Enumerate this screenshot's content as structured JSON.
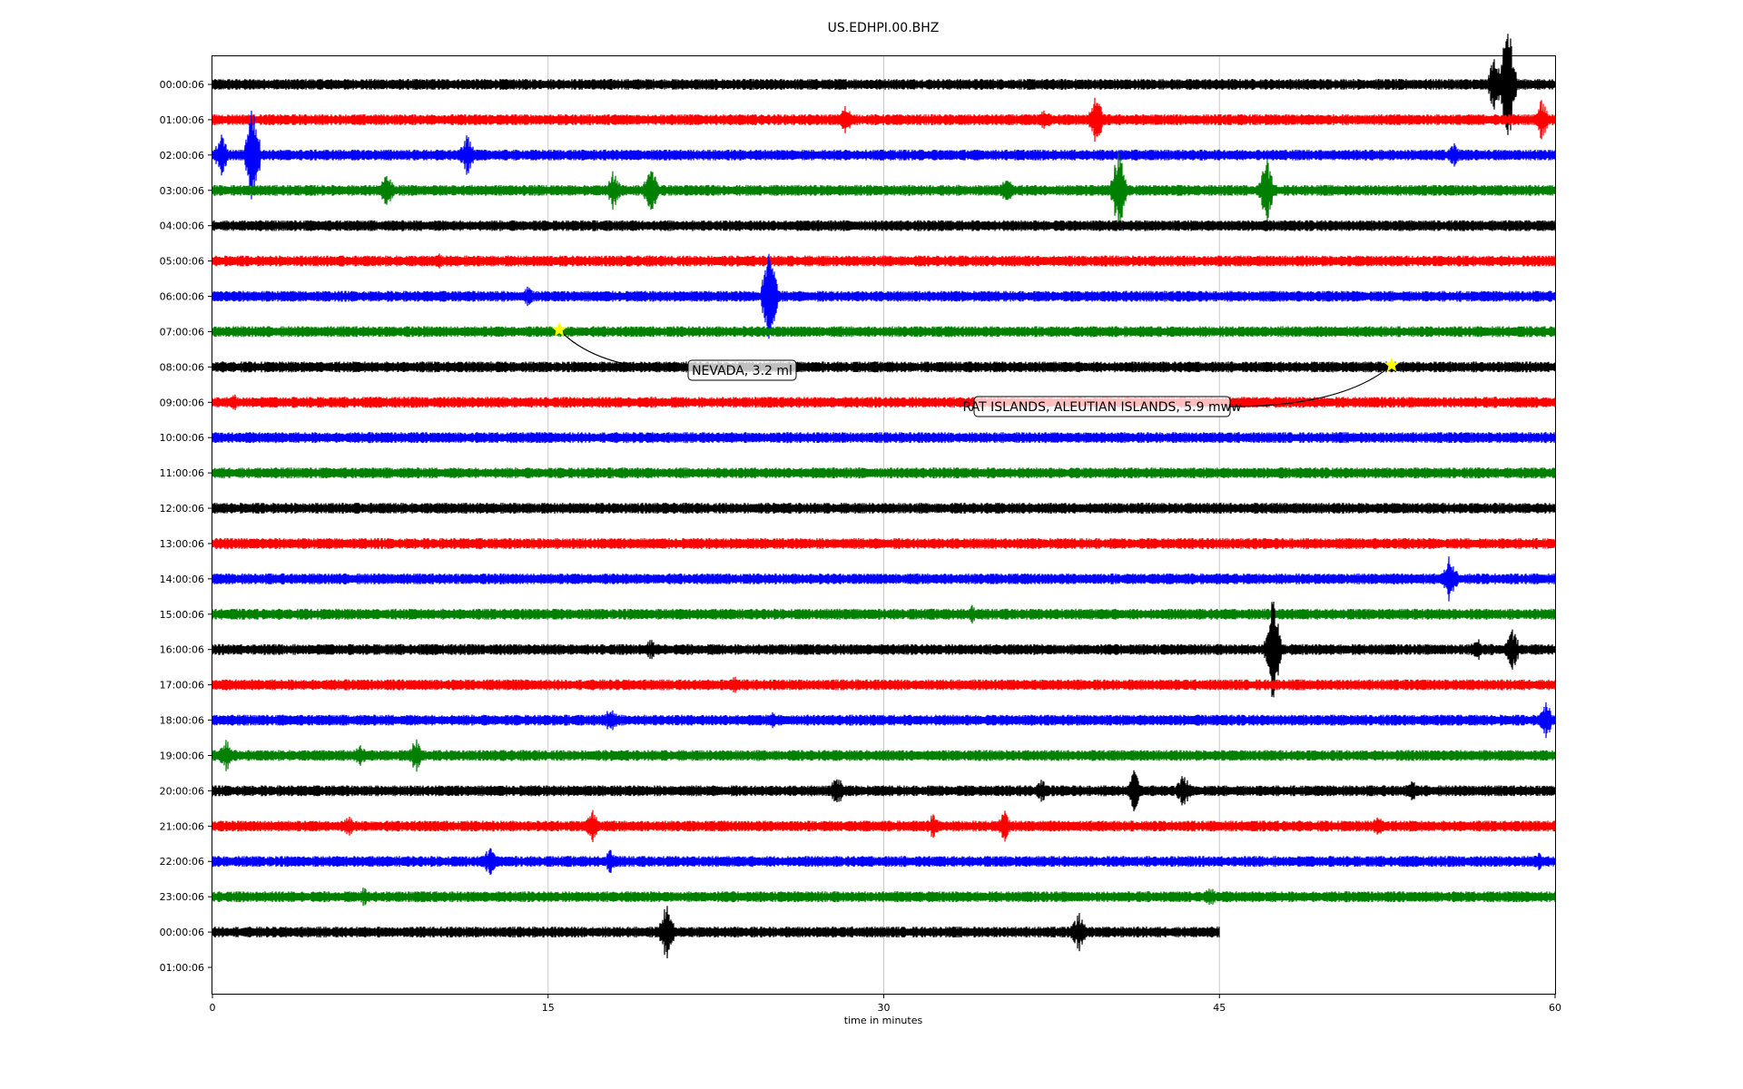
{
  "chart_data": {
    "type": "line",
    "title": "US.EDHPI.00.BHZ",
    "xlabel": "time in minutes",
    "ylabel": "",
    "xlim": [
      0,
      60
    ],
    "x_ticks": [
      "0",
      "15",
      "30",
      "45",
      "60"
    ],
    "x_tick_values": [
      0,
      15,
      30,
      45,
      60
    ],
    "grid": "vertical",
    "legend": "none",
    "row_labels": [
      "00:00:06",
      "01:00:06",
      "02:00:06",
      "03:00:06",
      "04:00:06",
      "05:00:06",
      "06:00:06",
      "07:00:06",
      "08:00:06",
      "09:00:06",
      "10:00:06",
      "11:00:06",
      "12:00:06",
      "13:00:06",
      "14:00:06",
      "15:00:06",
      "16:00:06",
      "17:00:06",
      "18:00:06",
      "19:00:06",
      "20:00:06",
      "21:00:06",
      "22:00:06",
      "23:00:06",
      "00:00:06",
      "01:00:06"
    ],
    "trace_colors": [
      "#000000",
      "#ff0000",
      "#0000ff",
      "#008000"
    ],
    "traces_end_minutes": [
      60,
      60,
      60,
      60,
      60,
      60,
      60,
      60,
      60,
      60,
      60,
      60,
      60,
      60,
      60,
      60,
      60,
      60,
      60,
      60,
      60,
      60,
      60,
      60,
      45
    ],
    "events_by_row": [
      [
        [
          57.9,
          3.2
        ],
        [
          57.3,
          1.4
        ]
      ],
      [
        [
          39.5,
          1.2
        ],
        [
          59.4,
          1.0
        ],
        [
          28.3,
          0.7
        ],
        [
          37.2,
          0.6
        ]
      ],
      [
        [
          1.8,
          2.4
        ],
        [
          0.4,
          1.0
        ],
        [
          11.4,
          1.0
        ],
        [
          55.5,
          0.6
        ]
      ],
      [
        [
          40.5,
          2.0
        ],
        [
          47.1,
          1.6
        ],
        [
          17.9,
          1.0
        ],
        [
          19.6,
          1.2
        ],
        [
          7.8,
          0.8
        ],
        [
          35.5,
          0.7
        ]
      ],
      [],
      [
        [
          10.1,
          0.4
        ]
      ],
      [
        [
          24.9,
          2.6
        ],
        [
          14.1,
          0.5
        ]
      ],
      [],
      [],
      [
        [
          1.0,
          0.4
        ]
      ],
      [],
      [],
      [],
      [],
      [
        [
          55.3,
          1.2
        ]
      ],
      [
        [
          33.9,
          0.5
        ]
      ],
      [
        [
          47.4,
          2.6
        ],
        [
          58.1,
          1.0
        ],
        [
          56.5,
          0.6
        ],
        [
          19.6,
          0.5
        ]
      ],
      [
        [
          23.3,
          0.5
        ]
      ],
      [
        [
          59.6,
          1.0
        ],
        [
          17.8,
          0.7
        ],
        [
          25.0,
          0.4
        ]
      ],
      [
        [
          0.6,
          0.8
        ],
        [
          9.1,
          0.8
        ],
        [
          6.6,
          0.5
        ]
      ],
      [
        [
          43.4,
          0.9
        ],
        [
          41.2,
          1.0
        ],
        [
          27.9,
          0.8
        ],
        [
          37.1,
          0.6
        ],
        [
          53.6,
          0.6
        ]
      ],
      [
        [
          17.0,
          0.8
        ],
        [
          35.4,
          0.8
        ],
        [
          32.2,
          0.6
        ],
        [
          52.1,
          0.5
        ],
        [
          6.1,
          0.5
        ]
      ],
      [
        [
          12.4,
          0.7
        ],
        [
          17.8,
          0.6
        ],
        [
          59.3,
          0.5
        ]
      ],
      [
        [
          6.8,
          0.5
        ],
        [
          44.6,
          0.5
        ]
      ],
      [
        [
          20.3,
          1.4
        ],
        [
          38.7,
          1.0
        ]
      ]
    ],
    "annotations": [
      {
        "label": "NEVADA, 3.2 ml",
        "row": 7,
        "minute": 15.5
      },
      {
        "label": "RAT ISLANDS, ALEUTIAN ISLANDS, 5.9 mww",
        "row": 8,
        "minute": 52.7
      }
    ]
  }
}
